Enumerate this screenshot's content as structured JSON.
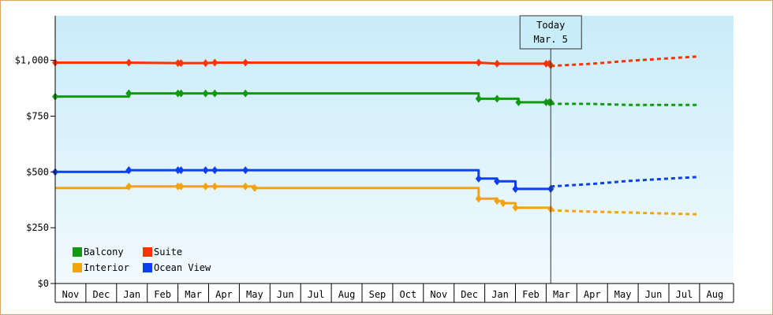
{
  "chart_data": {
    "type": "line",
    "title": "",
    "xlabel": "",
    "ylabel": "",
    "ylim": [
      0,
      1200
    ],
    "yticks": [
      {
        "value": 0,
        "label": "$0"
      },
      {
        "value": 250,
        "label": "$250"
      },
      {
        "value": 500,
        "label": "$500"
      },
      {
        "value": 750,
        "label": "$750"
      },
      {
        "value": 1000,
        "label": "$1,000"
      }
    ],
    "x_months": [
      "Nov",
      "Dec",
      "Jan",
      "Feb",
      "Mar",
      "Apr",
      "May",
      "Jun",
      "Jul",
      "Aug",
      "Sep",
      "Oct",
      "Nov",
      "Dec",
      "Jan",
      "Feb",
      "Mar",
      "Apr",
      "May",
      "Jun",
      "Jul",
      "Aug"
    ],
    "today_index": 16.15,
    "today_label_line1": "Today",
    "today_label_line2": "Mar. 5",
    "background_gradient": [
      "#c9ecf9",
      "#f2fafe"
    ],
    "legend_placement": "bottom-left",
    "series": [
      {
        "name": "Suite",
        "color": "#ff3300",
        "points": [
          [
            0,
            990
          ],
          [
            2.4,
            990
          ],
          [
            4.0,
            988
          ],
          [
            4.9,
            988
          ],
          [
            5.2,
            990
          ],
          [
            6.2,
            990
          ],
          [
            13.8,
            990
          ],
          [
            14.4,
            985
          ],
          [
            16.1,
            985
          ],
          [
            16.15,
            978
          ]
        ],
        "markers": [
          0,
          2.4,
          4.0,
          4.1,
          4.9,
          5.2,
          6.2,
          13.8,
          14.4,
          16.0,
          16.1,
          16.15
        ],
        "forecast": [
          [
            16.15,
            975
          ],
          [
            17.5,
            985
          ],
          [
            18.7,
            998
          ],
          [
            21.0,
            1018
          ]
        ]
      },
      {
        "name": "Balcony",
        "color": "#119911",
        "points": [
          [
            0,
            838
          ],
          [
            2.4,
            838
          ],
          [
            2.4,
            852
          ],
          [
            13.8,
            852
          ],
          [
            13.8,
            828
          ],
          [
            15.1,
            828
          ],
          [
            15.1,
            812
          ],
          [
            16.15,
            812
          ]
        ],
        "markers": [
          0,
          2.4,
          2.4,
          4.0,
          4.1,
          4.9,
          5.2,
          6.2,
          13.8,
          13.8,
          14.4,
          15.1,
          16.0,
          16.1,
          16.15
        ],
        "forecast": [
          [
            16.15,
            805
          ],
          [
            17.5,
            805
          ],
          [
            18.7,
            800
          ],
          [
            21.0,
            800
          ]
        ]
      },
      {
        "name": "Ocean View",
        "color": "#0a3ff2",
        "points": [
          [
            0,
            500
          ],
          [
            2.4,
            500
          ],
          [
            2.4,
            508
          ],
          [
            13.8,
            508
          ],
          [
            13.8,
            470
          ],
          [
            14.4,
            470
          ],
          [
            14.4,
            458
          ],
          [
            15.0,
            458
          ],
          [
            15.0,
            424
          ],
          [
            16.15,
            424
          ]
        ],
        "markers": [
          0,
          2.4,
          2.4,
          4.0,
          4.1,
          4.9,
          5.2,
          6.2,
          13.8,
          14.4,
          14.4,
          15.0,
          15.0,
          16.15,
          16.15
        ],
        "forecast": [
          [
            16.15,
            435
          ],
          [
            17.5,
            446
          ],
          [
            18.7,
            460
          ],
          [
            21.0,
            478
          ]
        ]
      },
      {
        "name": "Interior",
        "color": "#f5a30c",
        "points": [
          [
            0,
            428
          ],
          [
            2.4,
            428
          ],
          [
            2.4,
            435
          ],
          [
            6.5,
            435
          ],
          [
            6.5,
            428
          ],
          [
            13.8,
            428
          ],
          [
            13.8,
            380
          ],
          [
            14.4,
            380
          ],
          [
            14.4,
            370
          ],
          [
            14.6,
            370
          ],
          [
            14.6,
            360
          ],
          [
            15.0,
            360
          ],
          [
            15.0,
            340
          ],
          [
            16.15,
            340
          ],
          [
            16.15,
            333
          ]
        ],
        "markers": [
          2.4,
          4.0,
          4.1,
          4.9,
          5.2,
          6.2,
          6.5,
          13.8,
          13.8,
          14.4,
          14.6,
          15.0,
          16.15
        ],
        "forecast": [
          [
            16.15,
            328
          ],
          [
            17.5,
            322
          ],
          [
            18.7,
            318
          ],
          [
            21.0,
            310
          ]
        ]
      }
    ],
    "legend": [
      {
        "name": "Balcony",
        "color": "#119911"
      },
      {
        "name": "Suite",
        "color": "#ff3300"
      },
      {
        "name": "Interior",
        "color": "#f5a30c"
      },
      {
        "name": "Ocean View",
        "color": "#0a3ff2"
      }
    ]
  }
}
